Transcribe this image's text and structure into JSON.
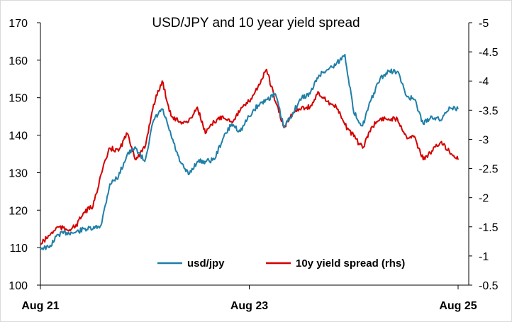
{
  "chart_data": {
    "type": "line",
    "title": "USD/JPY and 10 year yield spread",
    "x_ticks": [
      "Aug 21",
      "Aug 23",
      "Aug 25"
    ],
    "y_left": {
      "min": 100,
      "max": 170,
      "step": 10,
      "ticks": [
        "100",
        "110",
        "120",
        "130",
        "140",
        "150",
        "160",
        "170"
      ]
    },
    "y_right": {
      "min": -0.5,
      "max": -5,
      "inverted": true,
      "ticks": [
        "-0.5",
        "-1",
        "-1.5",
        "-2",
        "-2.5",
        "-3",
        "-3.5",
        "-4",
        "-4.5",
        "-5"
      ]
    },
    "grid": false,
    "legend_position": "bottom-center",
    "series": [
      {
        "name": "usd/jpy",
        "axis": "left",
        "color": "#1f7fa8",
        "points": [
          [
            "2021-08-01",
            110.0
          ],
          [
            "2021-09-01",
            110.0
          ],
          [
            "2021-10-01",
            113.5
          ],
          [
            "2021-11-01",
            114.0
          ],
          [
            "2021-12-01",
            114.0
          ],
          [
            "2022-01-01",
            115.0
          ],
          [
            "2022-02-01",
            115.0
          ],
          [
            "2022-03-01",
            116.0
          ],
          [
            "2022-04-01",
            127.0
          ],
          [
            "2022-05-01",
            129.0
          ],
          [
            "2022-06-01",
            135.0
          ],
          [
            "2022-07-01",
            136.5
          ],
          [
            "2022-08-01",
            133.0
          ],
          [
            "2022-09-01",
            144.0
          ],
          [
            "2022-10-01",
            147.0
          ],
          [
            "2022-11-01",
            140.0
          ],
          [
            "2022-12-01",
            133.0
          ],
          [
            "2023-01-01",
            129.5
          ],
          [
            "2023-02-01",
            133.0
          ],
          [
            "2023-03-01",
            133.0
          ],
          [
            "2023-04-01",
            133.5
          ],
          [
            "2023-05-01",
            139.0
          ],
          [
            "2023-06-01",
            143.0
          ],
          [
            "2023-07-01",
            141.0
          ],
          [
            "2023-08-01",
            145.0
          ],
          [
            "2023-09-01",
            148.0
          ],
          [
            "2023-10-01",
            149.5
          ],
          [
            "2023-11-01",
            151.0
          ],
          [
            "2023-12-01",
            142.0
          ],
          [
            "2024-01-01",
            146.0
          ],
          [
            "2024-02-01",
            150.0
          ],
          [
            "2024-03-01",
            151.0
          ],
          [
            "2024-04-01",
            156.0
          ],
          [
            "2024-05-01",
            157.5
          ],
          [
            "2024-06-01",
            159.0
          ],
          [
            "2024-07-01",
            161.5
          ],
          [
            "2024-08-01",
            146.0
          ],
          [
            "2024-09-01",
            142.5
          ],
          [
            "2024-10-01",
            149.5
          ],
          [
            "2024-11-01",
            155.0
          ],
          [
            "2024-12-01",
            157.0
          ],
          [
            "2025-01-01",
            157.0
          ],
          [
            "2025-02-01",
            150.5
          ],
          [
            "2025-03-01",
            149.5
          ],
          [
            "2025-04-01",
            143.0
          ],
          [
            "2025-05-01",
            145.0
          ],
          [
            "2025-06-01",
            144.0
          ],
          [
            "2025-07-01",
            147.5
          ],
          [
            "2025-08-01",
            147.0
          ]
        ]
      },
      {
        "name": "10y yield spread (rhs)",
        "axis": "right",
        "color": "#d40000",
        "points": [
          [
            "2021-08-01",
            -1.2
          ],
          [
            "2021-09-01",
            -1.35
          ],
          [
            "2021-10-01",
            -1.5
          ],
          [
            "2021-11-01",
            -1.45
          ],
          [
            "2021-12-01",
            -1.5
          ],
          [
            "2022-01-01",
            -1.75
          ],
          [
            "2022-02-01",
            -1.85
          ],
          [
            "2022-03-01",
            -2.4
          ],
          [
            "2022-04-01",
            -2.85
          ],
          [
            "2022-05-01",
            -2.8
          ],
          [
            "2022-06-01",
            -3.1
          ],
          [
            "2022-07-01",
            -2.65
          ],
          [
            "2022-08-01",
            -2.85
          ],
          [
            "2022-09-01",
            -3.6
          ],
          [
            "2022-10-01",
            -4.0
          ],
          [
            "2022-11-01",
            -3.4
          ],
          [
            "2022-12-01",
            -3.3
          ],
          [
            "2023-01-01",
            -3.3
          ],
          [
            "2023-02-01",
            -3.55
          ],
          [
            "2023-03-01",
            -3.1
          ],
          [
            "2023-04-01",
            -3.3
          ],
          [
            "2023-05-01",
            -3.4
          ],
          [
            "2023-06-01",
            -3.3
          ],
          [
            "2023-07-01",
            -3.5
          ],
          [
            "2023-08-01",
            -3.65
          ],
          [
            "2023-09-01",
            -3.9
          ],
          [
            "2023-10-01",
            -4.2
          ],
          [
            "2023-11-01",
            -3.65
          ],
          [
            "2023-12-01",
            -3.2
          ],
          [
            "2024-01-01",
            -3.45
          ],
          [
            "2024-02-01",
            -3.55
          ],
          [
            "2024-03-01",
            -3.55
          ],
          [
            "2024-04-01",
            -3.8
          ],
          [
            "2024-05-01",
            -3.65
          ],
          [
            "2024-06-01",
            -3.55
          ],
          [
            "2024-07-01",
            -3.25
          ],
          [
            "2024-08-01",
            -3.05
          ],
          [
            "2024-09-01",
            -2.85
          ],
          [
            "2024-10-01",
            -3.2
          ],
          [
            "2024-11-01",
            -3.35
          ],
          [
            "2024-12-01",
            -3.35
          ],
          [
            "2025-01-01",
            -3.35
          ],
          [
            "2025-02-01",
            -3.05
          ],
          [
            "2025-03-01",
            -3.05
          ],
          [
            "2025-04-01",
            -2.65
          ],
          [
            "2025-05-01",
            -2.8
          ],
          [
            "2025-06-01",
            -2.95
          ],
          [
            "2025-07-01",
            -2.8
          ],
          [
            "2025-08-01",
            -2.65
          ]
        ]
      }
    ]
  }
}
